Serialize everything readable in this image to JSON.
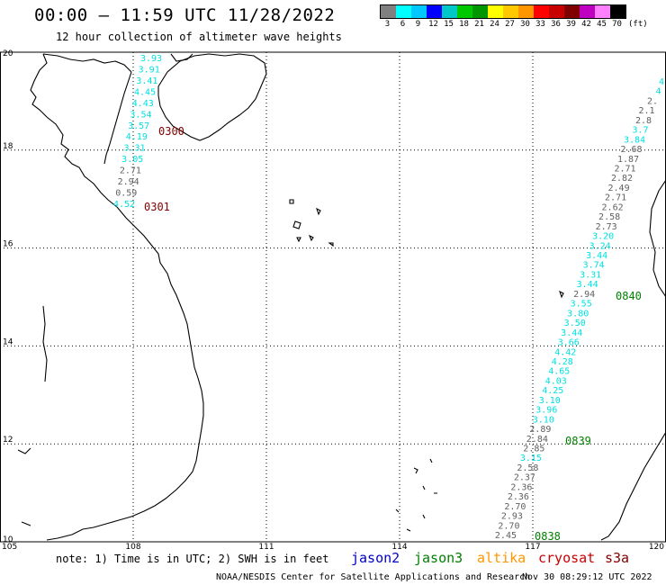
{
  "header": {
    "title": "00:00 – 11:59 UTC 11/28/2022",
    "subtitle": "12 hour collection of altimeter wave heights"
  },
  "legend": {
    "colors": [
      "#808080",
      "#00ffff",
      "#00c8ff",
      "#0000ff",
      "#00c8c8",
      "#00c800",
      "#009600",
      "#ffff00",
      "#ffc800",
      "#ff9600",
      "#ff0000",
      "#c80000",
      "#800000",
      "#c000c0",
      "#ff80ff",
      "#000000"
    ],
    "labels": [
      "3",
      "6",
      "9",
      "12",
      "15",
      "18",
      "21",
      "24",
      "27",
      "30",
      "33",
      "36",
      "39",
      "42",
      "45",
      "70",
      "(ft)"
    ]
  },
  "axes": {
    "lat_ticks": [
      "20",
      "18",
      "16",
      "14",
      "12",
      "10"
    ],
    "lon_ticks": [
      "105",
      "108",
      "111",
      "114",
      "117",
      "120"
    ]
  },
  "track_labels": [
    {
      "text": "0300",
      "color": "#800000"
    },
    {
      "text": "0301",
      "color": "#800000"
    },
    {
      "text": "0840",
      "color": "#008000"
    },
    {
      "text": "0839",
      "color": "#008000"
    },
    {
      "text": "0838",
      "color": "#008000"
    }
  ],
  "west_track": [
    {
      "v": "3.93",
      "c": "#00e0e0"
    },
    {
      "v": "3.91",
      "c": "#00e0e0"
    },
    {
      "v": "3.41",
      "c": "#00e0e0"
    },
    {
      "v": "4.45",
      "c": "#00e0e0"
    },
    {
      "v": "4.43",
      "c": "#00e0e0"
    },
    {
      "v": "3.54",
      "c": "#00e0e0"
    },
    {
      "v": "3.57",
      "c": "#00e0e0"
    },
    {
      "v": "4.19",
      "c": "#00e0e0"
    },
    {
      "v": "3.31",
      "c": "#00e0e0"
    },
    {
      "v": "3.05",
      "c": "#00e0e0"
    },
    {
      "v": "2.71",
      "c": "#606060"
    },
    {
      "v": "2.94",
      "c": "#606060"
    },
    {
      "v": "0.59",
      "c": "#606060"
    },
    {
      "v": "4.52",
      "c": "#00e0e0"
    }
  ],
  "east_track": [
    {
      "v": "4",
      "c": "#00e0e0"
    },
    {
      "v": "4",
      "c": "#00e0e0"
    },
    {
      "v": "2.",
      "c": "#606060"
    },
    {
      "v": "2.1",
      "c": "#606060"
    },
    {
      "v": "2.8",
      "c": "#606060"
    },
    {
      "v": "3.7",
      "c": "#00e0e0"
    },
    {
      "v": "3.84",
      "c": "#00e0e0"
    },
    {
      "v": "2.68",
      "c": "#606060"
    },
    {
      "v": "1.87",
      "c": "#606060"
    },
    {
      "v": "2.71",
      "c": "#606060"
    },
    {
      "v": "2.82",
      "c": "#606060"
    },
    {
      "v": "2.49",
      "c": "#606060"
    },
    {
      "v": "2.71",
      "c": "#606060"
    },
    {
      "v": "2.62",
      "c": "#606060"
    },
    {
      "v": "2.58",
      "c": "#606060"
    },
    {
      "v": "2.73",
      "c": "#606060"
    },
    {
      "v": "3.20",
      "c": "#00e0e0"
    },
    {
      "v": "3.24",
      "c": "#00e0e0"
    },
    {
      "v": "3.44",
      "c": "#00e0e0"
    },
    {
      "v": "3.74",
      "c": "#00e0e0"
    },
    {
      "v": "3.31",
      "c": "#00e0e0"
    },
    {
      "v": "3.44",
      "c": "#00e0e0"
    },
    {
      "v": "2.94",
      "c": "#606060"
    },
    {
      "v": "3.55",
      "c": "#00e0e0"
    },
    {
      "v": "3.80",
      "c": "#00e0e0"
    },
    {
      "v": "3.50",
      "c": "#00e0e0"
    },
    {
      "v": "3.44",
      "c": "#00e0e0"
    },
    {
      "v": "3.66",
      "c": "#00e0e0"
    },
    {
      "v": "4.42",
      "c": "#00e0e0"
    },
    {
      "v": "4.28",
      "c": "#00e0e0"
    },
    {
      "v": "4.65",
      "c": "#00e0e0"
    },
    {
      "v": "4.03",
      "c": "#00e0e0"
    },
    {
      "v": "4.25",
      "c": "#00e0e0"
    },
    {
      "v": "3.10",
      "c": "#00e0e0"
    },
    {
      "v": "3.96",
      "c": "#00e0e0"
    },
    {
      "v": "3.10",
      "c": "#00e0e0"
    },
    {
      "v": "2.89",
      "c": "#606060"
    },
    {
      "v": "2.84",
      "c": "#606060"
    },
    {
      "v": "2.85",
      "c": "#606060"
    },
    {
      "v": "3.15",
      "c": "#00e0e0"
    },
    {
      "v": "2.58",
      "c": "#606060"
    },
    {
      "v": "2.37",
      "c": "#606060"
    },
    {
      "v": "2.36",
      "c": "#606060"
    },
    {
      "v": "2.36",
      "c": "#606060"
    },
    {
      "v": "2.70",
      "c": "#606060"
    },
    {
      "v": "2.93",
      "c": "#606060"
    },
    {
      "v": "2.70",
      "c": "#606060"
    },
    {
      "v": "2.45",
      "c": "#606060"
    }
  ],
  "footer": {
    "note": "note: 1) Time is in UTC; 2) SWH is in feet",
    "satellites": [
      {
        "name": "jason2",
        "color": "#0000c8"
      },
      {
        "name": "jason3",
        "color": "#008000"
      },
      {
        "name": "altika",
        "color": "#ff9600"
      },
      {
        "name": "cryosat",
        "color": "#c80000"
      },
      {
        "name": "s3a",
        "color": "#800000"
      }
    ],
    "credit": "NOAA/NESDIS Center for Satellite Applications and Research",
    "timestamp": "Nov 30 08:29:12 UTC 2022"
  }
}
